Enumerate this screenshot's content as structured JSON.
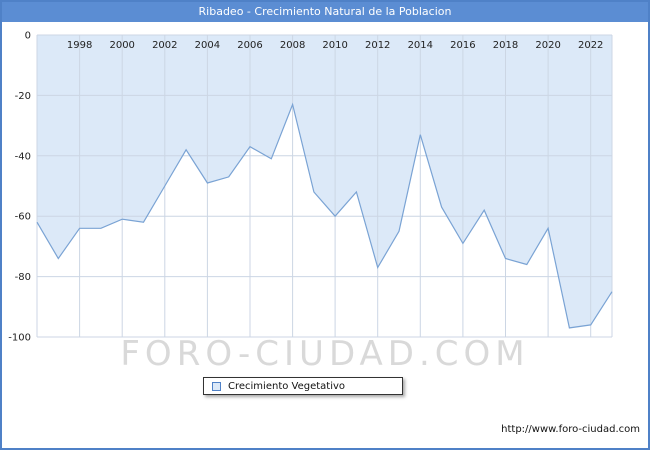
{
  "header": {
    "title": "Ribadeo - Crecimiento Natural de la Poblacion"
  },
  "legend": {
    "label": "Crecimiento Vegetativo"
  },
  "watermark": "FORO-CIUDAD.COM",
  "footer": {
    "url": "http://www.foro-ciudad.com"
  },
  "colors": {
    "frame_border": "#4f81c7",
    "header_bg": "#5b8dd3",
    "header_text": "#ffffff",
    "fill": "#dce9f8",
    "line": "#7aa3d4",
    "grid": "#ccd6e4",
    "watermark": "#d9d9d9",
    "label": "#222222"
  },
  "chart_data": {
    "type": "area",
    "title": "Ribadeo - Crecimiento Natural de la Poblacion",
    "xlabel": "",
    "ylabel": "",
    "xlim": [
      1996,
      2023
    ],
    "ylim": [
      -100,
      0
    ],
    "grid": true,
    "legend_position": "bottom",
    "x_ticks": [
      1998,
      2000,
      2002,
      2004,
      2006,
      2008,
      2010,
      2012,
      2014,
      2016,
      2018,
      2020,
      2022
    ],
    "y_ticks": [
      0,
      -20,
      -40,
      -60,
      -80,
      -100
    ],
    "series": [
      {
        "name": "Crecimiento Vegetativo",
        "x": [
          1996,
          1997,
          1998,
          1999,
          2000,
          2001,
          2002,
          2003,
          2004,
          2005,
          2006,
          2007,
          2008,
          2009,
          2010,
          2011,
          2012,
          2013,
          2014,
          2015,
          2016,
          2017,
          2018,
          2019,
          2020,
          2021,
          2022,
          2023
        ],
        "values": [
          -62,
          -74,
          -64,
          -64,
          -61,
          -62,
          -50,
          -38,
          -49,
          -47,
          -37,
          -41,
          -23,
          -52,
          -60,
          -52,
          -77,
          -65,
          -33,
          -57,
          -69,
          -58,
          -74,
          -76,
          -64,
          -97,
          -96,
          -85
        ]
      }
    ]
  }
}
